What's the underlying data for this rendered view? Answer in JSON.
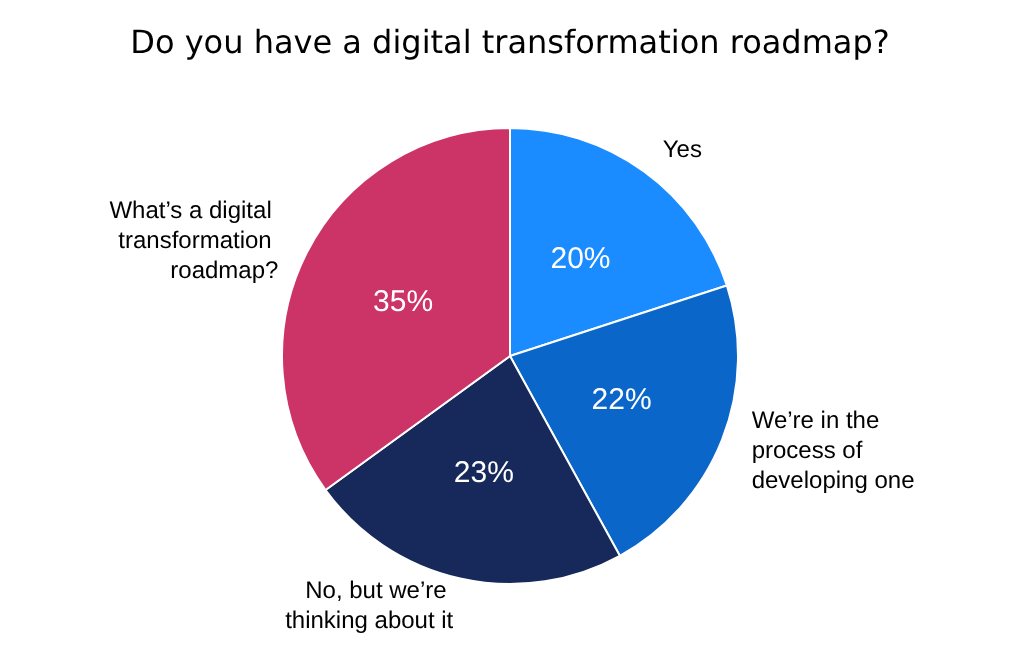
{
  "chart_data": {
    "type": "pie",
    "title": "Do you have a digital transformation roadmap?",
    "categories": [
      "Yes",
      "We’re in the process of developing one",
      "No, but we’re thinking about it",
      "What’s a digital transformation roadmap?"
    ],
    "values": [
      20,
      22,
      23,
      35
    ],
    "colors": [
      "#1a8cff",
      "#0a66c8",
      "#16295a",
      "#cc3366"
    ],
    "value_labels": [
      "20%",
      "22%",
      "23%",
      "35%"
    ],
    "legend": false
  }
}
